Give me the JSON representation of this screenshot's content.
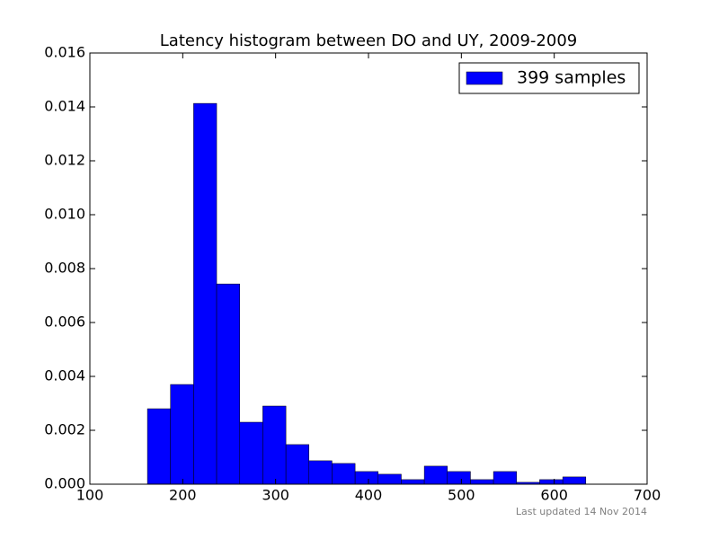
{
  "chart_data": {
    "type": "histogram",
    "title": "Latency histogram between DO and UY, 2009-2009",
    "bins": [
      162,
      186.8,
      211.7,
      236.5,
      261.4,
      286.2,
      311.1,
      335.9,
      360.7,
      385.6,
      410.4,
      435.3,
      460.1,
      484.9,
      509.8,
      534.6,
      559.5,
      584.3,
      609.2,
      634
    ],
    "series": [
      {
        "name": "399 samples",
        "color": "#0000ff",
        "values": [
          0.0028,
          0.0037,
          0.01413,
          0.00743,
          0.0023,
          0.0029,
          0.00147,
          0.00087,
          0.00077,
          0.00047,
          0.00037,
          0.00017,
          0.00067,
          0.00047,
          0.00017,
          0.00047,
          7e-05,
          0.00017,
          0.00027
        ]
      }
    ],
    "xlim": [
      100,
      700
    ],
    "xticks": [
      100,
      200,
      300,
      400,
      500,
      600,
      700
    ],
    "ylim": [
      0,
      0.016
    ],
    "yticks": [
      {
        "value": 0,
        "label": "0.000"
      },
      {
        "value": 0.002,
        "label": "0.002"
      },
      {
        "value": 0.004,
        "label": "0.004"
      },
      {
        "value": 0.006,
        "label": "0.006"
      },
      {
        "value": 0.008,
        "label": "0.008"
      },
      {
        "value": 0.01,
        "label": "0.010"
      },
      {
        "value": 0.012,
        "label": "0.012"
      },
      {
        "value": 0.014,
        "label": "0.014"
      },
      {
        "value": 0.016,
        "label": "0.016"
      }
    ],
    "legend": "upper right",
    "footnote": "Last updated 14 Nov 2014"
  }
}
